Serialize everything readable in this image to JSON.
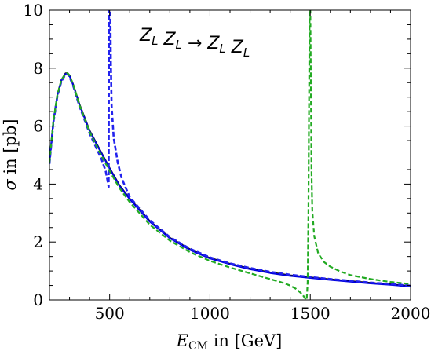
{
  "chart_data": {
    "type": "line",
    "annotation": "Z_L Z_L → Z_L Z_L",
    "xlabel": "E_CM in [GeV]",
    "ylabel": "σ in [pb]",
    "xlim": [
      200,
      2000
    ],
    "ylim": [
      0,
      10
    ],
    "xticks": [
      500,
      1000,
      1500,
      2000
    ],
    "yticks": [
      0,
      2,
      4,
      6,
      8,
      10
    ],
    "grid": false,
    "series": [
      {
        "color": "#000000",
        "style": "solid",
        "x": [
          200,
          220,
          240,
          260,
          280,
          290,
          300,
          320,
          350,
          400,
          450,
          500,
          550,
          600,
          700,
          800,
          900,
          1000,
          1100,
          1200,
          1300,
          1400,
          1500,
          1600,
          1700,
          1800,
          1900,
          2000
        ],
        "y": [
          4.75,
          6.2,
          7.1,
          7.6,
          7.82,
          7.83,
          7.75,
          7.4,
          6.75,
          5.85,
          5.2,
          4.55,
          3.95,
          3.5,
          2.72,
          2.15,
          1.75,
          1.45,
          1.25,
          1.08,
          0.95,
          0.85,
          0.78,
          0.71,
          0.65,
          0.59,
          0.54,
          0.48
        ]
      },
      {
        "color": "#0000dd",
        "style": "solid",
        "x": [
          200,
          220,
          240,
          260,
          280,
          290,
          300,
          320,
          350,
          400,
          450,
          500,
          550,
          600,
          700,
          800,
          900,
          1000,
          1100,
          1200,
          1300,
          1400,
          1500,
          1600,
          1700,
          1800,
          1900,
          2000
        ],
        "y": [
          4.72,
          6.18,
          7.08,
          7.58,
          7.8,
          7.81,
          7.73,
          7.38,
          6.73,
          5.83,
          5.18,
          4.53,
          3.93,
          3.48,
          2.7,
          2.13,
          1.73,
          1.43,
          1.23,
          1.06,
          0.93,
          0.83,
          0.76,
          0.69,
          0.63,
          0.57,
          0.52,
          0.46
        ]
      },
      {
        "color": "#2222ee",
        "style": "dashed",
        "x": [
          200,
          220,
          240,
          260,
          280,
          290,
          300,
          320,
          350,
          400,
          430,
          460,
          480,
          490,
          495,
          497,
          503,
          506,
          510,
          520,
          540,
          560,
          600,
          700,
          800,
          900,
          1000,
          1100,
          1200,
          1300,
          1400,
          1500,
          1600,
          1700,
          1800,
          1900,
          2000
        ],
        "y": [
          4.7,
          6.15,
          7.05,
          7.55,
          7.78,
          7.8,
          7.7,
          7.35,
          6.68,
          5.75,
          5.3,
          4.85,
          4.45,
          4.1,
          3.9,
          10.4,
          10.4,
          8.2,
          6.7,
          5.6,
          4.75,
          4.2,
          3.55,
          2.75,
          2.17,
          1.77,
          1.47,
          1.26,
          1.1,
          0.97,
          0.87,
          0.79,
          0.72,
          0.66,
          0.6,
          0.55,
          0.49
        ]
      },
      {
        "color": "#22aa22",
        "style": "dashed",
        "x": [
          200,
          220,
          240,
          260,
          280,
          290,
          300,
          320,
          350,
          400,
          450,
          500,
          550,
          600,
          700,
          800,
          900,
          1000,
          1100,
          1200,
          1300,
          1350,
          1400,
          1430,
          1460,
          1475,
          1482,
          1487,
          1491,
          1494,
          1497,
          1500,
          1503,
          1506,
          1510,
          1520,
          1540,
          1570,
          1600,
          1650,
          1700,
          1800,
          1900,
          2000
        ],
        "y": [
          4.75,
          6.2,
          7.1,
          7.6,
          7.8,
          7.83,
          7.75,
          7.4,
          6.72,
          5.8,
          5.1,
          4.45,
          3.85,
          3.38,
          2.6,
          2.05,
          1.65,
          1.35,
          1.12,
          0.92,
          0.72,
          0.62,
          0.5,
          0.38,
          0.2,
          0.05,
          0,
          0.6,
          3,
          7,
          10.4,
          10.4,
          7.5,
          4.5,
          3.1,
          2.2,
          1.6,
          1.3,
          1.15,
          0.98,
          0.86,
          0.72,
          0.62,
          0.55
        ]
      }
    ]
  }
}
